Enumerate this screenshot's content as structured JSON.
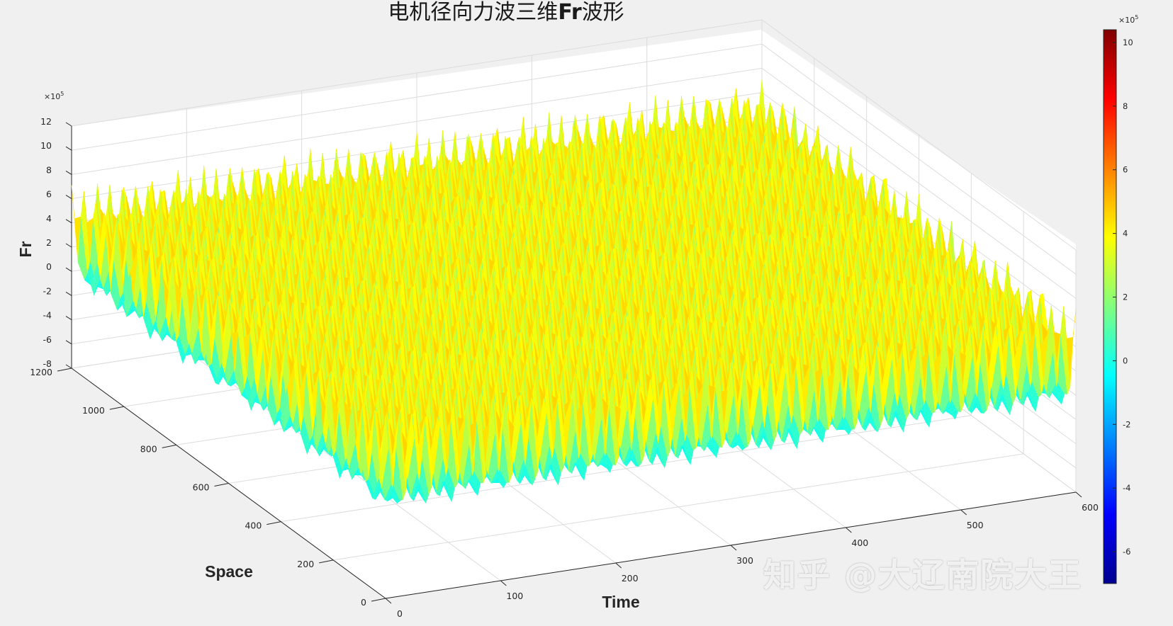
{
  "chart_data": {
    "type": "surface3d",
    "title_cjk_1": "电机径向力波三维",
    "title_bold": "Fr",
    "title_cjk_2": "波形",
    "xlabel": "Time",
    "ylabel": "Space",
    "zlabel": "Fr",
    "xlim": [
      0,
      600
    ],
    "ylim": [
      0,
      1200
    ],
    "zlim": [
      -800000,
      1200000
    ],
    "x_ticks": [
      "0",
      "100",
      "200",
      "300",
      "400",
      "500",
      "600"
    ],
    "y_ticks": [
      "0",
      "200",
      "400",
      "600",
      "800",
      "1000",
      "1200"
    ],
    "z_ticks": [
      "-8",
      "-6",
      "-4",
      "-2",
      "0",
      "2",
      "4",
      "6",
      "8",
      "10",
      "12"
    ],
    "z_multiplier": "×10",
    "z_multiplier_exp": "5",
    "colormap": "jet",
    "colorbar": {
      "clim": [
        -700000,
        1040000
      ],
      "ticks": [
        "-6",
        "-4",
        "-2",
        "0",
        "2",
        "4",
        "6",
        "8",
        "10"
      ],
      "multiplier": "×10",
      "multiplier_exp": "5"
    },
    "surface": {
      "peak_value": 1040000,
      "min_value": -700000,
      "typical_peak": 700000,
      "typical_trough": -300000,
      "time_peaks": 26,
      "space_ridges": 10
    },
    "grid": true
  },
  "watermark": "知乎 @大辽南院大王"
}
